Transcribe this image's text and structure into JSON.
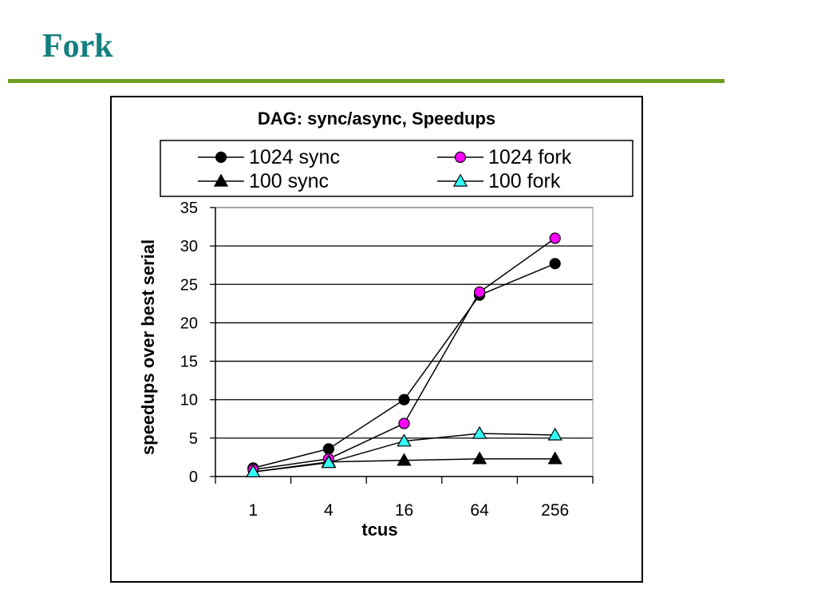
{
  "slide": {
    "title": "Fork"
  },
  "chart_data": {
    "type": "line",
    "title": "DAG: sync/async, Speedups",
    "xlabel": "tcus",
    "ylabel": "speedups over best serial",
    "categories": [
      "1",
      "4",
      "16",
      "64",
      "256"
    ],
    "ylim": [
      0,
      35
    ],
    "yticks": [
      0,
      5,
      10,
      15,
      20,
      25,
      30,
      35
    ],
    "grid": true,
    "legend_position": "top",
    "series": [
      {
        "name": "1024 sync",
        "marker": "circle",
        "color": "#000000",
        "values": [
          1.1,
          3.6,
          10.0,
          23.6,
          27.7
        ]
      },
      {
        "name": "1024 fork",
        "marker": "circle",
        "color": "#ff00ff",
        "values": [
          0.9,
          2.3,
          6.9,
          24.0,
          31.0
        ]
      },
      {
        "name": "100 sync",
        "marker": "triangle",
        "color": "#000000",
        "values": [
          0.6,
          1.9,
          2.1,
          2.3,
          2.3
        ]
      },
      {
        "name": "100 fork",
        "marker": "triangle",
        "color": "#33ffff",
        "values": [
          0.6,
          1.8,
          4.6,
          5.6,
          5.4
        ]
      }
    ]
  }
}
